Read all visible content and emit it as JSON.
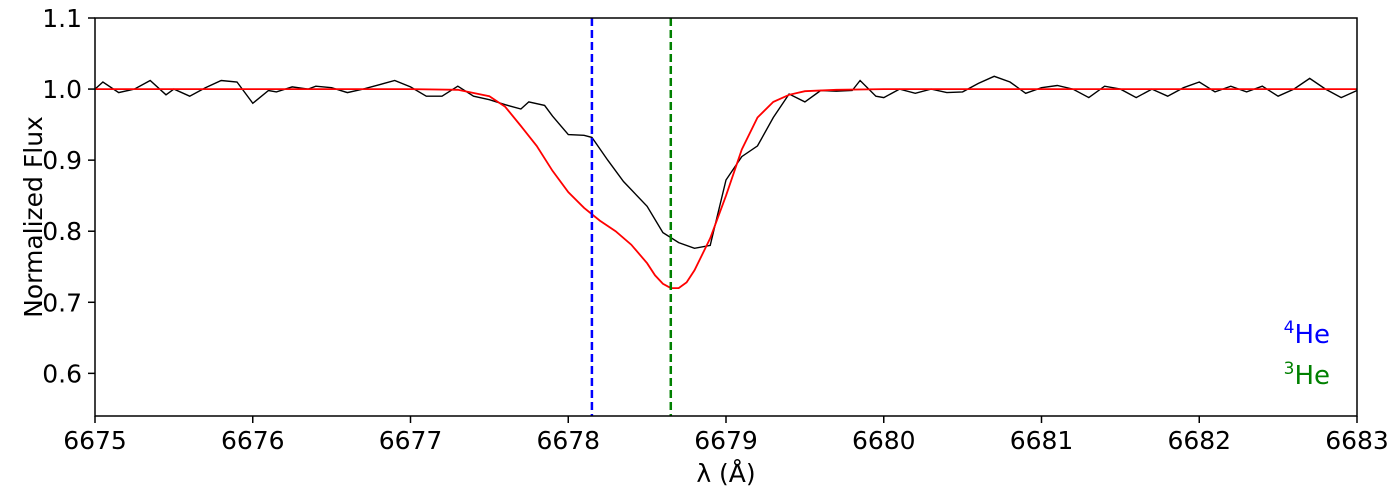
{
  "chart_data": {
    "type": "line",
    "xlabel": "λ (Å)",
    "ylabel": "Normalized Flux",
    "xlim": [
      6675,
      6683
    ],
    "ylim": [
      0.54,
      1.1
    ],
    "xticks": [
      6675,
      6676,
      6677,
      6678,
      6679,
      6680,
      6681,
      6682,
      6683
    ],
    "xtick_labels": [
      "6675",
      "6676",
      "6677",
      "6678",
      "6679",
      "6680",
      "6681",
      "6682",
      "6683"
    ],
    "yticks": [
      0.6,
      0.7,
      0.8,
      0.9,
      1.0,
      1.1
    ],
    "ytick_labels": [
      "0.6",
      "0.7",
      "0.8",
      "0.9",
      "1.0",
      "1.1"
    ],
    "grid": false,
    "legend_placement": "bottom-right",
    "vlines": [
      {
        "x": 6678.15,
        "color": "#0000ff",
        "style": "dashed",
        "sup": "4",
        "label": "He"
      },
      {
        "x": 6678.65,
        "color": "#008000",
        "style": "dashed",
        "sup": "3",
        "label": "He"
      }
    ],
    "series": [
      {
        "color": "#000000",
        "style": "solid",
        "x": [
          6675.0,
          6675.05,
          6675.15,
          6675.25,
          6675.35,
          6675.45,
          6675.5,
          6675.6,
          6675.7,
          6675.8,
          6675.9,
          6676.0,
          6676.1,
          6676.15,
          6676.25,
          6676.35,
          6676.4,
          6676.5,
          6676.6,
          6676.7,
          6676.8,
          6676.9,
          6677.0,
          6677.1,
          6677.2,
          6677.3,
          6677.4,
          6677.5,
          6677.6,
          6677.7,
          6677.75,
          6677.85,
          6677.9,
          6678.0,
          6678.1,
          6678.15,
          6678.25,
          6678.35,
          6678.5,
          6678.6,
          6678.7,
          6678.8,
          6678.9,
          6679.0,
          6679.1,
          6679.2,
          6679.3,
          6679.4,
          6679.5,
          6679.6,
          6679.7,
          6679.8,
          6679.85,
          6679.95,
          6680.0,
          6680.1,
          6680.2,
          6680.3,
          6680.4,
          6680.5,
          6680.6,
          6680.7,
          6680.8,
          6680.9,
          6681.0,
          6681.1,
          6681.2,
          6681.3,
          6681.4,
          6681.5,
          6681.6,
          6681.7,
          6681.8,
          6681.9,
          6682.0,
          6682.1,
          6682.2,
          6682.3,
          6682.4,
          6682.5,
          6682.6,
          6682.7,
          6682.8,
          6682.9,
          6683.0
        ],
        "y": [
          1.0,
          1.01,
          0.995,
          1.0,
          1.012,
          0.992,
          1.0,
          0.99,
          1.002,
          1.012,
          1.01,
          0.98,
          0.998,
          0.996,
          1.003,
          1.0,
          1.004,
          1.002,
          0.995,
          1.0,
          1.006,
          1.012,
          1.003,
          0.99,
          0.99,
          1.004,
          0.99,
          0.985,
          0.978,
          0.972,
          0.982,
          0.977,
          0.962,
          0.936,
          0.935,
          0.932,
          0.9,
          0.87,
          0.835,
          0.798,
          0.784,
          0.776,
          0.78,
          0.872,
          0.905,
          0.92,
          0.96,
          0.993,
          0.982,
          0.998,
          0.997,
          0.998,
          1.012,
          0.99,
          0.988,
          1.0,
          0.994,
          1.0,
          0.995,
          0.996,
          1.008,
          1.018,
          1.01,
          0.994,
          1.002,
          1.005,
          1.0,
          0.988,
          1.004,
          1.0,
          0.988,
          1.0,
          0.99,
          1.002,
          1.01,
          0.996,
          1.004,
          0.996,
          1.004,
          0.99,
          1.0,
          1.015,
          1.0,
          0.988,
          0.998
        ]
      },
      {
        "color": "#ff0000",
        "style": "solid",
        "x": [
          6675.0,
          6676.0,
          6677.0,
          6677.3,
          6677.5,
          6677.6,
          6677.7,
          6677.8,
          6677.9,
          6678.0,
          6678.1,
          6678.2,
          6678.3,
          6678.4,
          6678.5,
          6678.55,
          6678.6,
          6678.65,
          6678.7,
          6678.75,
          6678.8,
          6678.9,
          6679.0,
          6679.1,
          6679.2,
          6679.3,
          6679.4,
          6679.5,
          6679.7,
          6680.0,
          6681.0,
          6682.0,
          6683.0
        ],
        "y": [
          1.0,
          1.0,
          1.0,
          0.999,
          0.99,
          0.975,
          0.948,
          0.92,
          0.885,
          0.855,
          0.833,
          0.815,
          0.8,
          0.781,
          0.755,
          0.738,
          0.726,
          0.72,
          0.72,
          0.728,
          0.745,
          0.79,
          0.85,
          0.915,
          0.96,
          0.982,
          0.992,
          0.997,
          0.999,
          1.0,
          1.0,
          1.0,
          1.0
        ]
      }
    ]
  }
}
